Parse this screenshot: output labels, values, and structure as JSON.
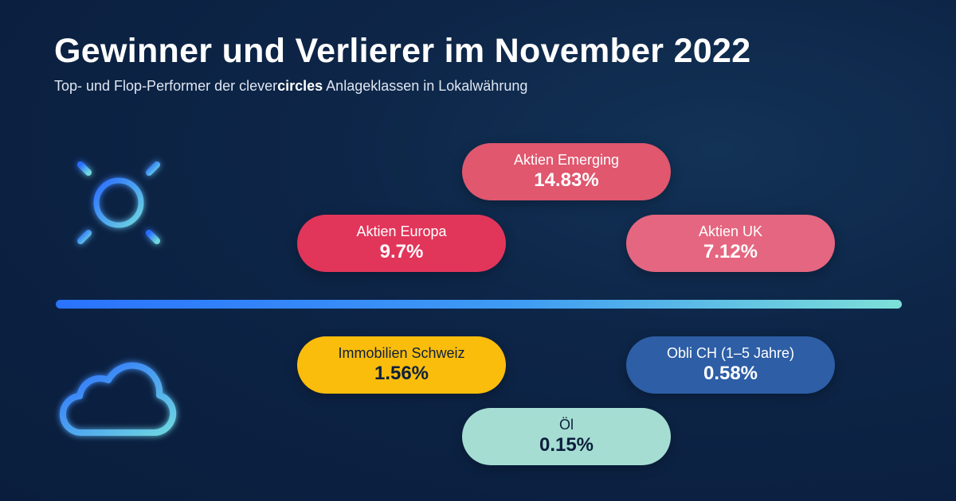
{
  "header": {
    "title": "Gewinner und Verlierer im November 2022",
    "subtitle_before": "Top- und Flop-Performer der clever",
    "subtitle_brand": "circles",
    "subtitle_after": " Anlageklassen in Lokalwährung"
  },
  "colors": {
    "background": "#0d2547",
    "divider_start": "#2a72ff",
    "divider_end": "#7de0d8",
    "sun_icon": "#2f8bff",
    "cloud_icon": "#2f8bff"
  },
  "icons": {
    "winners": "sun-icon",
    "losers": "cloud-icon"
  },
  "winners": [
    {
      "label": "Aktien Emerging",
      "value": "14.83%",
      "color": "#e0576e"
    },
    {
      "label": "Aktien Europa",
      "value": "9.7%",
      "color": "#e2355a"
    },
    {
      "label": "Aktien UK",
      "value": "7.12%",
      "color": "#e56680"
    }
  ],
  "losers": [
    {
      "label": "Immobilien Schweiz",
      "value": "1.56%",
      "color": "#fbbd0c"
    },
    {
      "label": "Obli CH (1–5 Jahre)",
      "value": "0.58%",
      "color": "#2d5ea6"
    },
    {
      "label": "Öl",
      "value": "0.15%",
      "color": "#a5ddd3"
    }
  ]
}
